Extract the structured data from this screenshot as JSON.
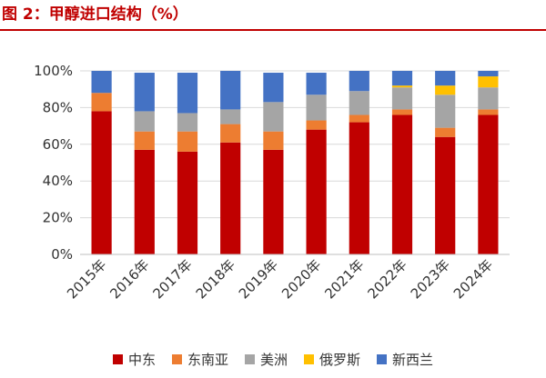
{
  "figure": {
    "title": "图 2：甲醇进口结构（%）",
    "accent_color": "#c00000"
  },
  "chart_data": {
    "type": "bar",
    "stacked": true,
    "categories": [
      "2015年",
      "2016年",
      "2017年",
      "2018年",
      "2019年",
      "2020年",
      "2021年",
      "2022年",
      "2023年",
      "2024年"
    ],
    "series": [
      {
        "name": "中东",
        "color": "#c00000",
        "values": [
          78,
          57,
          56,
          61,
          57,
          68,
          72,
          76,
          64,
          76
        ]
      },
      {
        "name": "东南亚",
        "color": "#ed7d31",
        "values": [
          10,
          10,
          11,
          10,
          10,
          5,
          4,
          3,
          5,
          3
        ]
      },
      {
        "name": "美洲",
        "color": "#a5a5a5",
        "values": [
          0,
          11,
          10,
          8,
          16,
          14,
          13,
          12,
          18,
          12
        ]
      },
      {
        "name": "俄罗斯",
        "color": "#ffc000",
        "values": [
          0,
          0,
          0,
          0,
          0,
          0,
          0,
          1,
          5,
          6
        ]
      },
      {
        "name": "新西兰",
        "color": "#4472c4",
        "values": [
          12,
          21,
          22,
          21,
          16,
          12,
          11,
          8,
          8,
          3
        ]
      }
    ],
    "y_ticks": [
      "0%",
      "20%",
      "40%",
      "60%",
      "80%",
      "100%"
    ],
    "ylim": [
      0,
      100
    ],
    "grid": true,
    "legend_position": "bottom"
  }
}
